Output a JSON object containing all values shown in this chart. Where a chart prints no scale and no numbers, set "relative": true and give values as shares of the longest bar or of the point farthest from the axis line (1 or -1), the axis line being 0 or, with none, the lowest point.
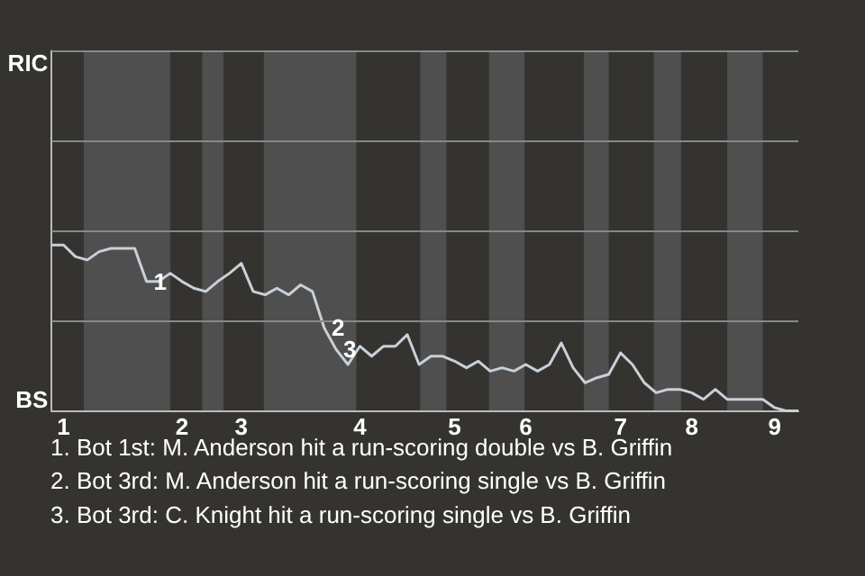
{
  "chart_data": {
    "type": "line",
    "relative": true,
    "categories": [
      null,
      "1",
      null,
      null,
      null,
      null,
      null,
      null,
      null,
      null,
      null,
      "2",
      null,
      null,
      null,
      null,
      "3",
      null,
      null,
      null,
      null,
      null,
      null,
      null,
      null,
      null,
      "4",
      null,
      null,
      null,
      null,
      null,
      null,
      null,
      "5",
      null,
      null,
      null,
      null,
      null,
      "6",
      null,
      null,
      null,
      null,
      null,
      null,
      null,
      "7",
      null,
      null,
      null,
      null,
      null,
      "8",
      null,
      null,
      null,
      null,
      null,
      null,
      "9",
      null,
      null
    ],
    "series": [
      {
        "color": "#c8d0d8",
        "values": [
          1,
          1,
          0.93,
          0.91,
          0.96,
          0.98,
          0.98,
          0.98,
          0.78,
          0.78,
          0.83,
          0.78,
          0.74,
          0.72,
          0.78,
          0.83,
          0.89,
          0.72,
          0.7,
          0.74,
          0.7,
          0.76,
          0.72,
          0.5,
          0.37,
          0.28,
          0.39,
          0.33,
          0.39,
          0.39,
          0.46,
          0.28,
          0.33,
          0.33,
          0.3,
          0.26,
          0.3,
          0.24,
          0.26,
          0.24,
          0.28,
          0.24,
          0.28,
          0.41,
          0.26,
          0.17,
          0.2,
          0.22,
          0.35,
          0.28,
          0.17,
          0.11,
          0.13,
          0.13,
          0.11,
          0.07,
          0.13,
          0.07,
          0.07,
          0.07,
          0.07,
          0.02,
          0,
          0
        ]
      }
    ],
    "marker": "none",
    "ref_lines": [
      {
        "axis": "y",
        "value": 0.54,
        "color": "#888888"
      },
      {
        "axis": "y",
        "value": 1.09,
        "color": "#888888"
      },
      {
        "axis": "y",
        "value": 1.63,
        "color": "#888888"
      },
      {
        "axis": "y",
        "value": 2.17,
        "color": "#888888"
      }
    ],
    "annotations": [
      "RIC",
      "BS",
      {
        "text": "1",
        "y": 0.78
      },
      {
        "text": "2",
        "y": 0.5
      },
      {
        "text": "3",
        "y": 0.37
      },
      "1. Bot 1st: M. Anderson hit a run-scoring double vs B. Griffin",
      "2. Bot 3rd: M. Anderson hit a run-scoring single vs B. Griffin",
      "3. Bot 3rd: C. Knight hit a run-scoring single vs B. Griffin"
    ]
  }
}
